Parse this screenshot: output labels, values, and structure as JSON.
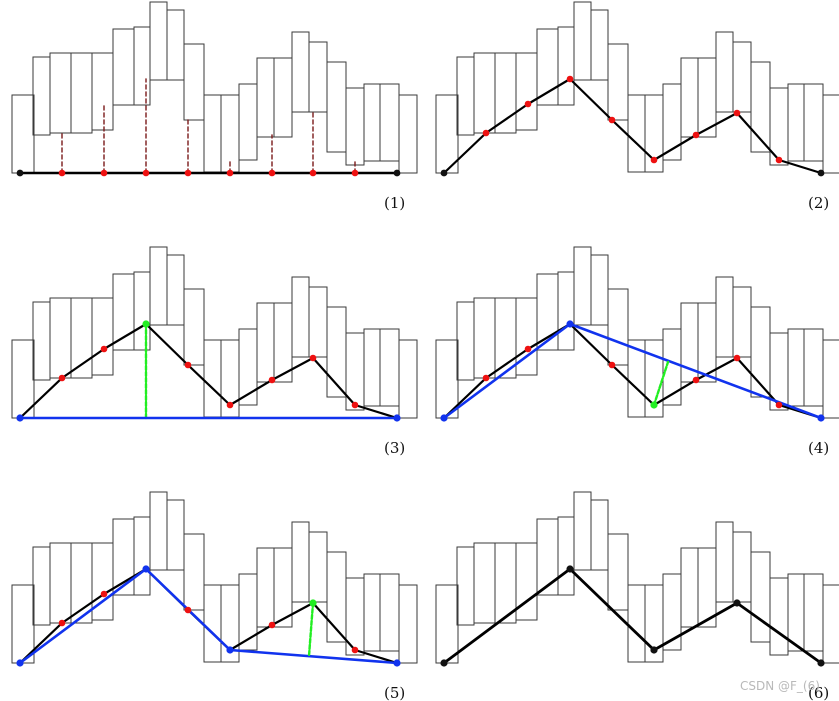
{
  "figure": {
    "description_free": true,
    "panels": [
      {
        "label": "(1)",
        "step": 1
      },
      {
        "label": "(2)",
        "step": 2
      },
      {
        "label": "(3)",
        "step": 3
      },
      {
        "label": "(4)",
        "step": 4
      },
      {
        "label": "(5)",
        "step": 5
      },
      {
        "label": "(6)",
        "step": 6
      }
    ],
    "watermark": "CSDN @F_(6)"
  },
  "colors": {
    "bar_stroke": "#3a3a3a",
    "polyline": "#000000",
    "point": "#ee1111",
    "endpoint": "#111111",
    "simplified_line": "#1133ee",
    "distance": "#22ee22",
    "dropline": "#7a1a1a"
  }
}
